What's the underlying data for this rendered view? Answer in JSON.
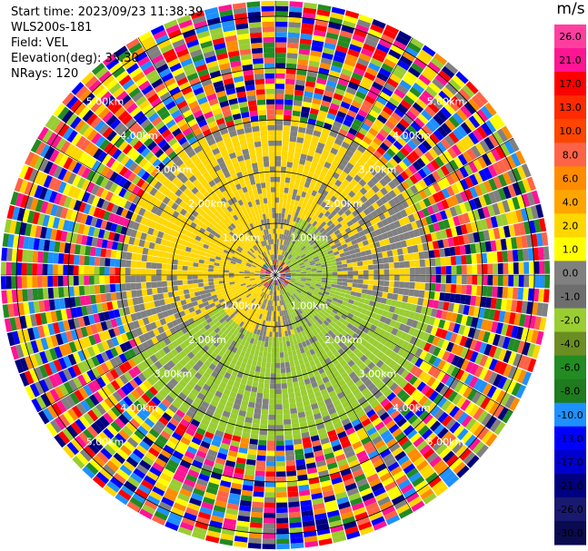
{
  "header": {
    "start_time": "Start time: 2023/09/23 11:38:39",
    "instrument": "WLS200s-181",
    "field": "Field: VEL",
    "elevation": "Elevation(deg): 35.30",
    "nrays": "NRays: 120"
  },
  "colorbar": {
    "unit": "m/s",
    "ticks": [
      "26.0",
      "21.0",
      "17.0",
      "13.0",
      "10.0",
      "8.0",
      "6.0",
      "4.0",
      "2.0",
      "1.0",
      "0.0",
      "-1.0",
      "-2.0",
      "-4.0",
      "-6.0",
      "-8.0",
      "-10.0",
      "-13.0",
      "-17.0",
      "-21.0",
      "-26.0",
      "-30.0"
    ],
    "colors": [
      "#ff3fa0",
      "#ff1493",
      "#ff0000",
      "#ff2a00",
      "#ff4500",
      "#ff6347",
      "#ff8c00",
      "#ffa500",
      "#ffd700",
      "#ffff00",
      "#808080",
      "#6e6e6e",
      "#9acd32",
      "#6b8e23",
      "#228b22",
      "#1e7b1e",
      "#1e90ff",
      "#0000ff",
      "#0000cd",
      "#000080",
      "#191970",
      "#0a0a50"
    ]
  },
  "chart_data": {
    "type": "heatmap",
    "projection": "polar PPI (range-azimuth)",
    "field": "VEL",
    "units": "m/s",
    "nrays": 120,
    "elevation_deg": 35.3,
    "range_rings_km": [
      1.0,
      2.0,
      3.0,
      4.0,
      5.0
    ],
    "range_ring_labels": [
      "1.00km",
      "2.00km",
      "3.00km",
      "4.00km",
      "5.00km"
    ],
    "spoke_angles_deg": [
      0,
      30,
      60,
      90,
      120,
      150,
      180,
      210,
      240,
      270,
      300,
      330
    ],
    "color_scale": {
      "min": -30.0,
      "max": 26.0
    },
    "regions": [
      {
        "range_km": [
          0.0,
          0.3
        ],
        "description": "near-origin noise",
        "velocity": "mixed"
      },
      {
        "range_km": [
          0.3,
          1.2
        ],
        "azimuth_sector_deg": [
          200,
          340
        ],
        "velocity": 2.0
      },
      {
        "range_km": [
          0.3,
          1.2
        ],
        "azimuth_sector_deg": [
          20,
          160
        ],
        "velocity": -2.0
      },
      {
        "range_km": [
          1.2,
          2.8
        ],
        "azimuth_sector_deg": [
          270,
          40
        ],
        "velocity": 2.0
      },
      {
        "range_km": [
          1.2,
          3.2
        ],
        "azimuth_sector_deg": [
          100,
          240
        ],
        "velocity": -3.0
      },
      {
        "range_km": [
          3.0,
          5.3
        ],
        "description": "noise (random colors)",
        "velocity": "noise"
      }
    ]
  }
}
